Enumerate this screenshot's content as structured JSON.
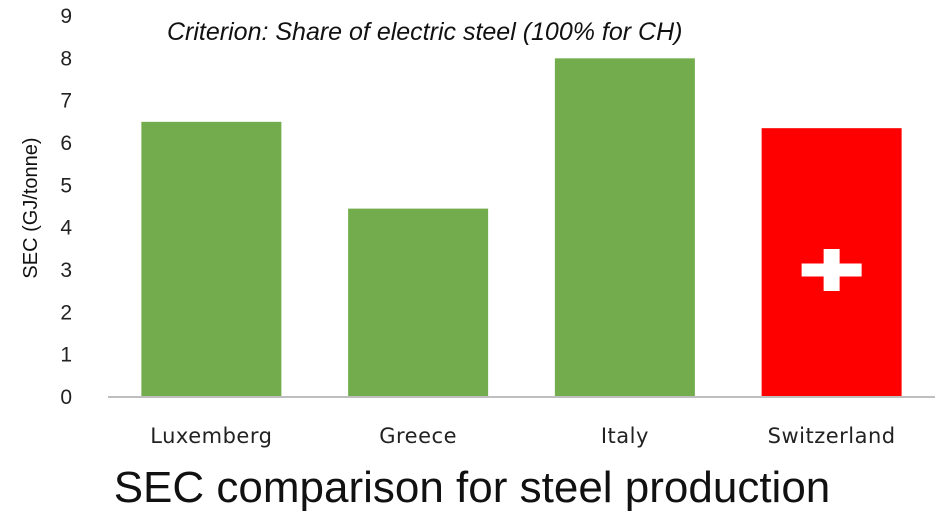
{
  "chart_data": {
    "type": "bar",
    "annotation": "Criterion: Share of electric steel (100% for CH)",
    "caption": "SEC comparison for steel production",
    "ylabel": "SEC (GJ/tonne)",
    "xlabel": "",
    "ylim": [
      0,
      9
    ],
    "yticks": [
      "0",
      "1",
      "2",
      "3",
      "4",
      "5",
      "6",
      "7",
      "8",
      "9"
    ],
    "grid": false,
    "categories": [
      "Luxemberg",
      "Greece",
      "Italy",
      "Switzerland"
    ],
    "values": [
      6.5,
      4.45,
      8.0,
      6.35
    ],
    "colors": [
      "#72ac4d",
      "#72ac4d",
      "#72ac4d",
      "#ff0000"
    ],
    "flag_on_category": "Switzerland",
    "flag_icon": "swiss-cross-icon"
  }
}
